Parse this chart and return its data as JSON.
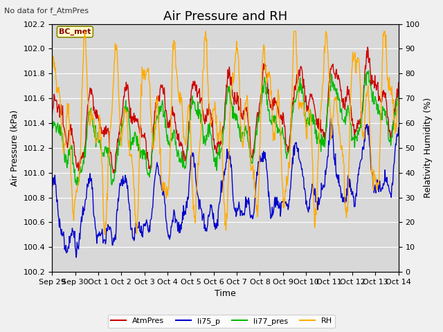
{
  "title": "Air Pressure and RH",
  "top_left_text": "No data for f_AtmPres",
  "annotation_text": "BC_met",
  "ylabel_left": "Air Pressure (kPa)",
  "ylabel_right": "Relativity Humidity (%)",
  "xlabel": "Time",
  "ylim_left": [
    100.2,
    102.2
  ],
  "ylim_right": [
    0,
    100
  ],
  "yticks_left": [
    100.2,
    100.4,
    100.6,
    100.8,
    101.0,
    101.2,
    101.4,
    101.6,
    101.8,
    102.0,
    102.2
  ],
  "yticks_right": [
    0,
    10,
    20,
    30,
    40,
    50,
    60,
    70,
    80,
    90,
    100
  ],
  "colors": {
    "AtmPres": "#cc0000",
    "li75_p": "#0000cc",
    "li77_pres": "#00bb00",
    "RH": "#ffaa00"
  },
  "legend_labels": [
    "AtmPres",
    "li75_p",
    "li77_pres",
    "RH"
  ],
  "plot_bg_color": "#d8d8d8",
  "fig_bg_color": "#f0f0f0",
  "grid_color": "#ffffff",
  "title_fontsize": 13,
  "label_fontsize": 9,
  "tick_fontsize": 8
}
